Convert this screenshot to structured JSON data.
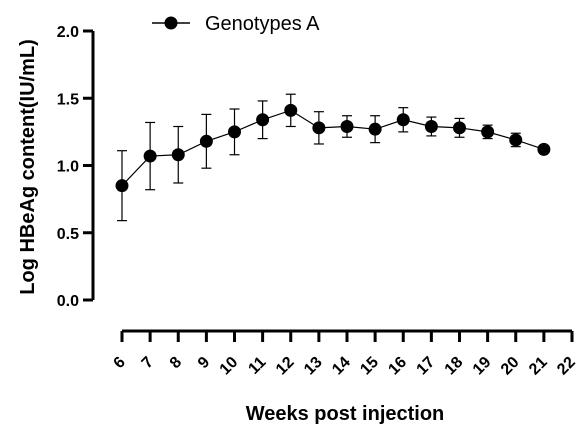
{
  "chart_data": {
    "type": "line",
    "title": "",
    "xlabel": "Weeks post injection",
    "ylabel": "Log HBeAg content(IU/mL)",
    "ylim": [
      0,
      2.0
    ],
    "y_ticks": [
      "0.0",
      "0.5",
      "1.0",
      "1.5",
      "2.0"
    ],
    "y_tick_values": [
      0,
      0.5,
      1.0,
      1.5,
      2.0
    ],
    "x_ticks": [
      "6",
      "7",
      "8",
      "9",
      "10",
      "11",
      "12",
      "13",
      "14",
      "15",
      "16",
      "17",
      "18",
      "19",
      "20",
      "21",
      "22"
    ],
    "xlim": [
      6,
      22
    ],
    "grid": false,
    "legend_position": "top",
    "series": [
      {
        "name": "Genotypes A",
        "color": "#000000",
        "marker": "circle",
        "x": [
          6,
          7,
          8,
          9,
          10,
          11,
          12,
          13,
          14,
          15,
          16,
          17,
          18,
          19,
          20,
          21
        ],
        "y": [
          0.85,
          1.07,
          1.08,
          1.18,
          1.25,
          1.34,
          1.41,
          1.28,
          1.29,
          1.27,
          1.34,
          1.29,
          1.28,
          1.25,
          1.19,
          1.12
        ],
        "error": [
          0.26,
          0.25,
          0.21,
          0.2,
          0.17,
          0.14,
          0.12,
          0.12,
          0.08,
          0.1,
          0.09,
          0.07,
          0.07,
          0.05,
          0.05,
          0.0
        ]
      }
    ]
  }
}
